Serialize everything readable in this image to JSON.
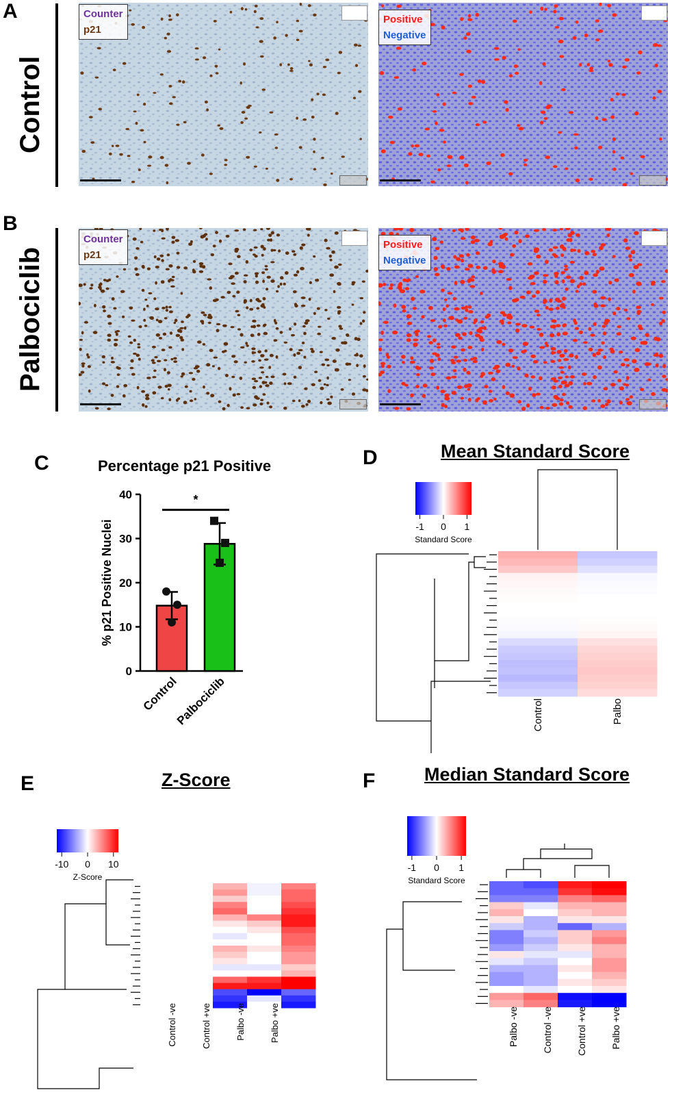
{
  "panels": {
    "a": "A",
    "b": "B",
    "c": "C",
    "d": "D",
    "e": "E",
    "f": "F"
  },
  "rows": {
    "control": "Control",
    "palbociclib": "Palbociclib"
  },
  "legends": {
    "stain_counter": "Counter",
    "stain_p21": "p21",
    "class_positive": "Positive",
    "class_negative": "Negative"
  },
  "colors": {
    "counter": "#7030a0",
    "p21": "#6b3a12",
    "positive": "#ff1a1a",
    "negative": "#1f5fd6",
    "bar_control": "#f04545",
    "bar_palbo": "#18c018",
    "heat_low": "#0000ff",
    "heat_mid": "#ffffff",
    "heat_high": "#ff0000"
  },
  "chart_data": [
    {
      "type": "bar",
      "title": "Percentage p21 Positive",
      "ylabel": "% p21 Positive Nuclei",
      "xlabel": "",
      "categories": [
        "Control",
        "Palbociclib"
      ],
      "values": [
        14.8,
        28.8
      ],
      "error": [
        3.1,
        4.7
      ],
      "points": [
        [
          18,
          15,
          11
        ],
        [
          34,
          29,
          24.5
        ]
      ],
      "ylim": [
        0,
        40
      ],
      "yticks": [
        0,
        10,
        20,
        30,
        40
      ],
      "annotation": "*"
    },
    {
      "type": "heatmap",
      "title": "Mean Standard Score",
      "columns": [
        "Control",
        "Palbo"
      ],
      "colorbar_label": "Standard Score",
      "colorbar_ticks": [
        "-1",
        "0",
        "1"
      ],
      "values": [
        [
          0.32,
          -0.22
        ],
        [
          0.28,
          -0.18
        ],
        [
          0.22,
          -0.12
        ],
        [
          0.05,
          -0.03
        ],
        [
          0.03,
          -0.02
        ],
        [
          0.02,
          -0.01
        ],
        [
          0.01,
          0.0
        ],
        [
          0.0,
          0.0
        ],
        [
          0.0,
          0.0
        ],
        [
          -0.01,
          0.01
        ],
        [
          -0.02,
          0.02
        ],
        [
          -0.04,
          0.04
        ],
        [
          -0.14,
          0.12
        ],
        [
          -0.2,
          0.16
        ],
        [
          -0.22,
          0.18
        ],
        [
          -0.26,
          0.2
        ],
        [
          -0.24,
          0.22
        ],
        [
          -0.28,
          0.2
        ],
        [
          -0.22,
          0.18
        ],
        [
          -0.18,
          0.14
        ]
      ]
    },
    {
      "type": "heatmap",
      "title": "Z-Score",
      "columns": [
        "Control -ve",
        "Control +ve",
        "Palbo -ve",
        "Palbo +ve"
      ],
      "colorbar_label": "Z-Score",
      "colorbar_ticks": [
        "-10",
        "0",
        "10"
      ],
      "values": [
        [
          0,
          3,
          -0.5,
          5
        ],
        [
          0,
          4,
          -0.5,
          6
        ],
        [
          0,
          2,
          0,
          6
        ],
        [
          0,
          5,
          0,
          7
        ],
        [
          0,
          6,
          0,
          8
        ],
        [
          0,
          3,
          5,
          9
        ],
        [
          0,
          1,
          2,
          9
        ],
        [
          0,
          0,
          1,
          7
        ],
        [
          0,
          -1,
          0,
          6
        ],
        [
          0,
          0,
          0,
          6
        ],
        [
          0,
          3,
          1,
          5
        ],
        [
          0,
          2,
          0,
          4
        ],
        [
          0,
          1,
          0,
          4
        ],
        [
          0,
          -1,
          -1,
          2
        ],
        [
          0,
          0,
          0,
          3
        ],
        [
          0,
          6,
          8,
          10
        ],
        [
          0,
          9,
          9,
          10
        ],
        [
          0,
          -7,
          -10,
          -6
        ],
        [
          0,
          -8,
          -1,
          -8
        ],
        [
          0,
          -9,
          0,
          -9
        ]
      ]
    },
    {
      "type": "heatmap",
      "title": "Median Standard Score",
      "columns": [
        "Palbo -ve",
        "Control -ve",
        "Control +ve",
        "Palbo +ve"
      ],
      "colorbar_label": "Standard Score",
      "colorbar_ticks": [
        "-1",
        "0",
        "1"
      ],
      "values": [
        [
          -0.6,
          -0.7,
          0.9,
          1.0
        ],
        [
          -0.6,
          -0.6,
          0.8,
          0.95
        ],
        [
          -0.5,
          -0.5,
          0.5,
          0.6
        ],
        [
          0.2,
          -0.1,
          0.3,
          0.3
        ],
        [
          0.3,
          0.0,
          0.2,
          0.3
        ],
        [
          0.1,
          -0.3,
          0.1,
          0.1
        ],
        [
          -0.2,
          -0.3,
          -0.6,
          -0.3
        ],
        [
          -0.5,
          -0.2,
          0.2,
          0.4
        ],
        [
          -0.5,
          -0.3,
          0.2,
          0.5
        ],
        [
          -0.4,
          -0.2,
          0.1,
          0.3
        ],
        [
          0.1,
          -0.1,
          -0.1,
          0.3
        ],
        [
          -0.1,
          -0.2,
          0.0,
          0.4
        ],
        [
          -0.3,
          -0.3,
          0.1,
          0.4
        ],
        [
          -0.4,
          -0.3,
          0.0,
          0.3
        ],
        [
          -0.4,
          -0.3,
          0.1,
          0.2
        ],
        [
          0.0,
          -0.1,
          0.0,
          0.1
        ],
        [
          0.4,
          0.6,
          -0.95,
          -1.0
        ],
        [
          0.3,
          0.5,
          -0.9,
          -1.0
        ]
      ]
    }
  ]
}
